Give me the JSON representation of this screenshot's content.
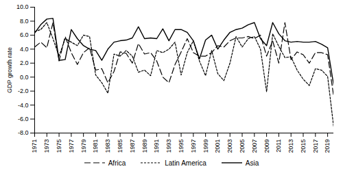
{
  "chart_data": {
    "type": "line",
    "y_label": "GDP growth rate",
    "x": [
      1971,
      1972,
      1973,
      1974,
      1975,
      1976,
      1977,
      1978,
      1979,
      1980,
      1981,
      1982,
      1983,
      1984,
      1985,
      1986,
      1987,
      1988,
      1989,
      1990,
      1991,
      1992,
      1993,
      1994,
      1995,
      1996,
      1997,
      1998,
      1999,
      2000,
      2001,
      2002,
      2003,
      2004,
      2005,
      2006,
      2007,
      2008,
      2009,
      2010,
      2011,
      2012,
      2013,
      2014,
      2015,
      2016,
      2017,
      2018,
      2019,
      2020
    ],
    "xlim": [
      1971,
      2020
    ],
    "xticks": [
      1971,
      1973,
      1975,
      1977,
      1979,
      1981,
      1983,
      1985,
      1987,
      1989,
      1991,
      1993,
      1995,
      1997,
      1999,
      2001,
      2003,
      2005,
      2007,
      2009,
      2011,
      2013,
      2015,
      2017,
      2019
    ],
    "ylim": [
      -8,
      10
    ],
    "yticks": [
      {
        "value": -8,
        "label": "-8.0"
      },
      {
        "value": -6,
        "label": "-6.0"
      },
      {
        "value": -4,
        "label": "-4.0"
      },
      {
        "value": -2,
        "label": "-2.0"
      },
      {
        "value": 0,
        "label": "0.0"
      },
      {
        "value": 2,
        "label": "2.0"
      },
      {
        "value": 4,
        "label": "4.0"
      },
      {
        "value": 6,
        "label": "6.0"
      },
      {
        "value": 8,
        "label": "8.0"
      },
      {
        "value": 10,
        "label": "10.0"
      }
    ],
    "grid": false,
    "legend": "bottom",
    "series": [
      {
        "name": "Africa",
        "color": "#000000",
        "line_style": "long_dash",
        "values": [
          4.3,
          5.0,
          4.2,
          7.8,
          2.3,
          5.8,
          3.5,
          1.8,
          3.5,
          4.2,
          1.0,
          1.2,
          -0.8,
          0.8,
          3.6,
          3.4,
          2.0,
          4.8,
          3.3,
          3.5,
          2.3,
          0.0,
          -0.8,
          1.8,
          3.6,
          5.5,
          3.5,
          3.0,
          3.0,
          3.5,
          4.5,
          4.3,
          5.2,
          5.6,
          5.6,
          5.8,
          5.5,
          6.0,
          3.0,
          5.2,
          2.0,
          7.8,
          2.5,
          3.6,
          3.2,
          2.0,
          3.5,
          3.5,
          3.2,
          -2.8
        ]
      },
      {
        "name": "Latin America",
        "color": "#000000",
        "line_style": "short_dash",
        "values": [
          6.5,
          6.8,
          7.8,
          5.5,
          3.0,
          5.5,
          5.0,
          4.5,
          6.0,
          5.8,
          0.3,
          -0.8,
          -2.3,
          3.3,
          3.0,
          3.8,
          3.0,
          0.7,
          1.0,
          0.2,
          3.8,
          3.5,
          4.0,
          5.0,
          0.3,
          3.5,
          5.2,
          2.3,
          0.2,
          3.8,
          0.5,
          -0.5,
          2.0,
          5.8,
          4.3,
          5.5,
          5.8,
          4.0,
          -2.1,
          6.2,
          4.4,
          2.8,
          2.9,
          1.0,
          -0.3,
          -1.2,
          1.2,
          1.0,
          0.1,
          -7.2
        ]
      },
      {
        "name": "Asia",
        "color": "#000000",
        "line_style": "solid",
        "values": [
          6.3,
          7.5,
          8.3,
          8.4,
          2.4,
          2.5,
          6.8,
          5.5,
          4.5,
          4.0,
          3.8,
          2.4,
          4.0,
          5.0,
          5.2,
          5.3,
          5.6,
          7.2,
          5.5,
          5.6,
          5.5,
          6.9,
          5.2,
          6.8,
          6.8,
          6.4,
          5.2,
          2.6,
          5.3,
          6.0,
          4.0,
          5.3,
          6.4,
          6.8,
          7.0,
          7.5,
          7.8,
          5.5,
          4.5,
          7.8,
          6.2,
          5.2,
          5.0,
          5.1,
          5.0,
          5.0,
          5.1,
          4.7,
          4.2,
          -1.2
        ]
      }
    ]
  }
}
